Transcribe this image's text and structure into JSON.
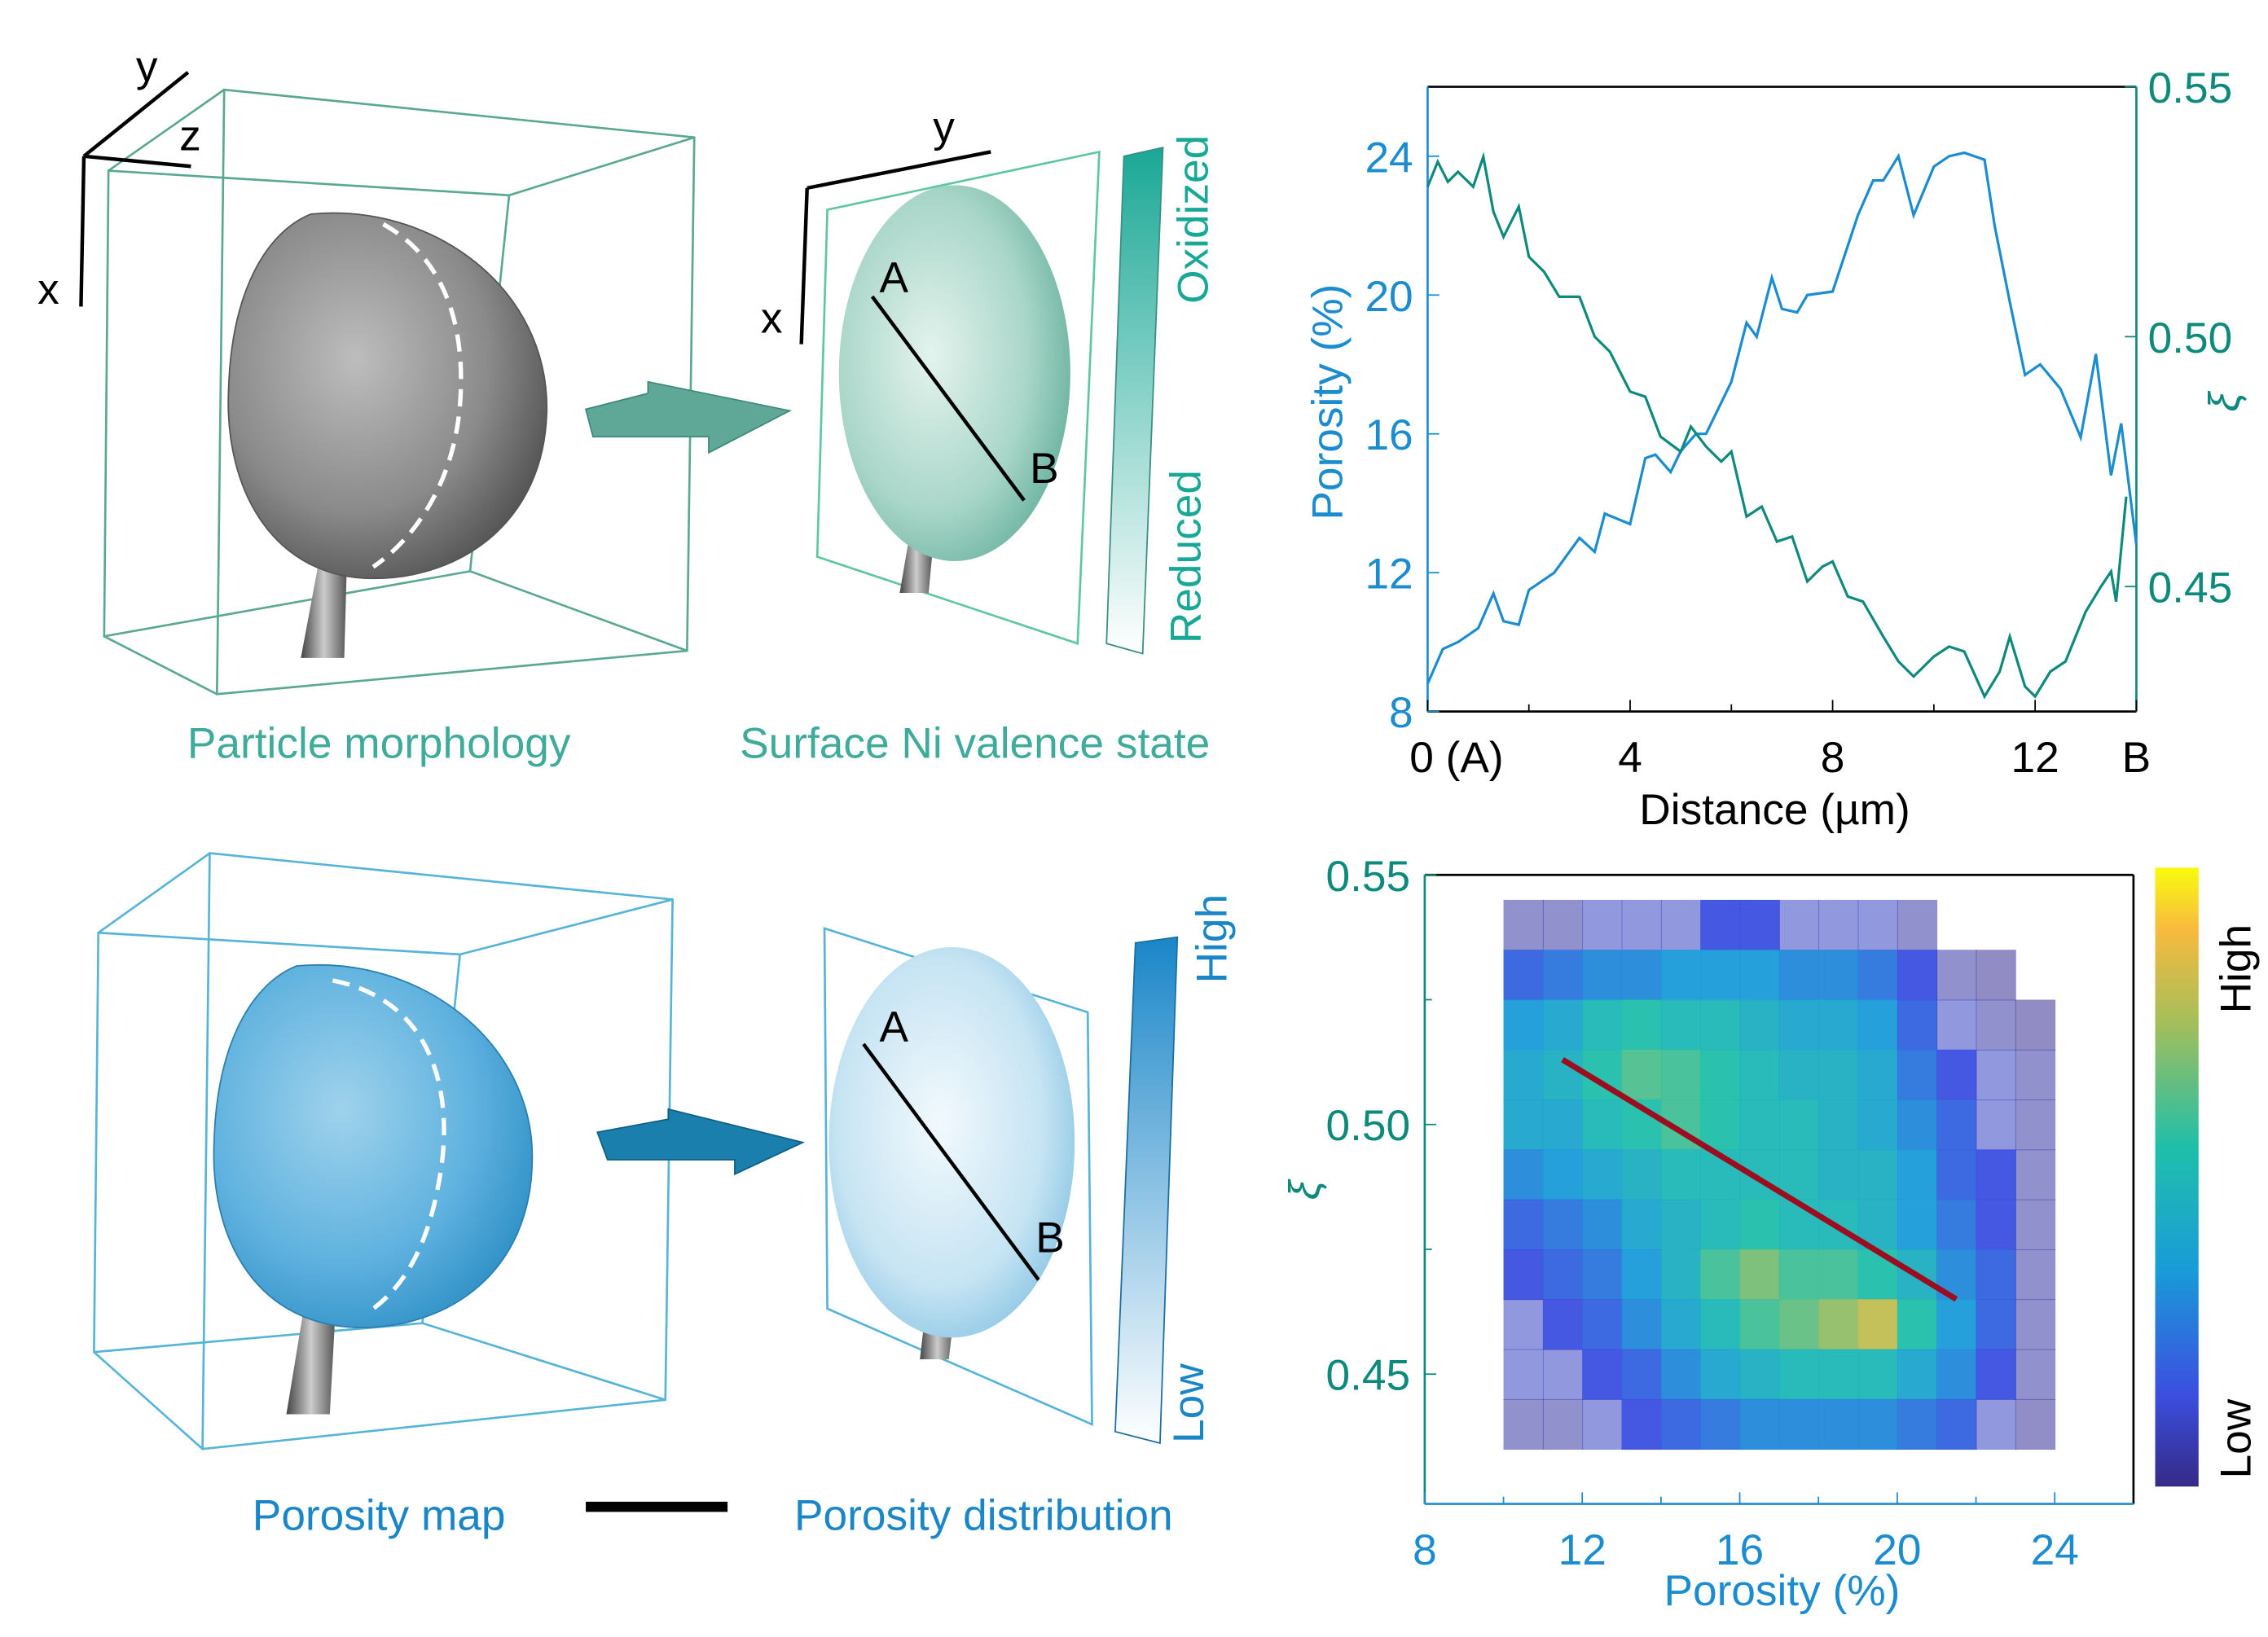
{
  "colors": {
    "porosity": "#1b8ccf",
    "xi": "#0e8a7c",
    "teal_label": "#3fab9b",
    "blue_label": "#1a86c8",
    "fit_line": "#9b0d1f",
    "morph_box": "#5aa894",
    "porosity_box": "#56b4d8"
  },
  "panels": {
    "top_left": {
      "caption": "Particle morphology",
      "axis_x": "x",
      "axis_y": "y",
      "axis_z": "z"
    },
    "top_mid": {
      "caption": "Surface Ni valence state",
      "axis_x": "x",
      "axis_y": "y",
      "point_a": "A",
      "point_b": "B",
      "colorbar_top": "Oxidized",
      "colorbar_bottom": "Reduced"
    },
    "bottom_left": {
      "caption": "Porosity map"
    },
    "bottom_mid": {
      "caption": "Porosity distribution",
      "point_a": "A",
      "point_b": "B",
      "colorbar_top": "High",
      "colorbar_bottom": "Low"
    }
  },
  "chart_data": [
    {
      "type": "line",
      "xlabel": "Distance (µm)",
      "ylabel": "Porosity (%)",
      "y2label": "ξ",
      "xlim": [
        0,
        14
      ],
      "ylim": [
        8,
        26
      ],
      "y2lim": [
        0.425,
        0.55
      ],
      "xticks": [
        {
          "v": 0,
          "label": "0 (A)"
        },
        {
          "v": 4,
          "label": "4"
        },
        {
          "v": 8,
          "label": "8"
        },
        {
          "v": 12,
          "label": "12"
        },
        {
          "v": 14,
          "label": "B"
        }
      ],
      "yticks": [
        "8",
        "12",
        "16",
        "20",
        "24"
      ],
      "y2ticks": [
        "0.45",
        "0.50",
        "0.55"
      ],
      "series": [
        {
          "axis": "left",
          "color": "#1b8ccf",
          "x": [
            0,
            0.3,
            0.6,
            1,
            1.3,
            1.5,
            1.8,
            2,
            2.5,
            3,
            3.3,
            3.5,
            4,
            4.3,
            4.5,
            4.8,
            5,
            5.3,
            5.5,
            6,
            6.3,
            6.5,
            6.8,
            7,
            7.3,
            7.5,
            8,
            8.5,
            8.8,
            9,
            9.3,
            9.6,
            10,
            10.3,
            10.6,
            11,
            11.2,
            11.5,
            11.8,
            12.1,
            12.5,
            12.9,
            13.2,
            13.5,
            13.7,
            14
          ],
          "y": [
            8.8,
            9.8,
            10.0,
            10.4,
            11.4,
            10.6,
            10.5,
            11.5,
            12.0,
            13.0,
            12.6,
            13.7,
            13.4,
            15.3,
            15.4,
            14.9,
            15.5,
            16.0,
            16.0,
            17.5,
            19.2,
            18.8,
            20.5,
            19.6,
            19.5,
            20.0,
            20.1,
            22.3,
            23.3,
            23.3,
            24.0,
            22.3,
            23.7,
            24.0,
            24.1,
            23.9,
            22.0,
            19.8,
            17.7,
            18.0,
            17.3,
            15.9,
            18.3,
            14.8,
            16.3,
            12.8
          ]
        },
        {
          "axis": "right",
          "color": "#0e8a7c",
          "x": [
            0,
            0.2,
            0.4,
            0.6,
            0.9,
            1.1,
            1.3,
            1.5,
            1.8,
            2,
            2.3,
            2.6,
            3,
            3.3,
            3.6,
            4,
            4.3,
            4.6,
            5,
            5.2,
            5.5,
            5.8,
            6,
            6.3,
            6.6,
            6.9,
            7.2,
            7.5,
            7.8,
            8,
            8.3,
            8.6,
            9,
            9.3,
            9.6,
            10,
            10.3,
            10.6,
            11,
            11.3,
            11.5,
            11.8,
            12,
            12.3,
            12.6,
            13,
            13.3,
            13.5,
            13.6,
            13.8
          ],
          "y": [
            0.53,
            0.535,
            0.531,
            0.533,
            0.53,
            0.536,
            0.525,
            0.52,
            0.526,
            0.516,
            0.513,
            0.508,
            0.508,
            0.5,
            0.497,
            0.489,
            0.488,
            0.48,
            0.477,
            0.482,
            0.478,
            0.475,
            0.477,
            0.464,
            0.466,
            0.459,
            0.46,
            0.451,
            0.454,
            0.455,
            0.448,
            0.447,
            0.44,
            0.435,
            0.432,
            0.436,
            0.438,
            0.437,
            0.428,
            0.433,
            0.44,
            0.43,
            0.428,
            0.433,
            0.435,
            0.445,
            0.45,
            0.453,
            0.447,
            0.468
          ]
        }
      ]
    },
    {
      "type": "heatmap",
      "xlabel": "Porosity (%)",
      "ylabel": "ξ",
      "xlim": [
        8,
        26
      ],
      "ylim": [
        0.424,
        0.55
      ],
      "xticks": [
        "8",
        "12",
        "16",
        "20",
        "24"
      ],
      "yticks": [
        "0.45",
        "0.50",
        "0.55"
      ],
      "colorbar": {
        "high": "High",
        "low": "Low"
      },
      "x_bins_start": 10,
      "x_bin_width": 1,
      "y_bins_top": 0.545,
      "y_bin_height": 0.01,
      "density": [
        [
          0.05,
          0.05,
          0.1,
          0.1,
          0.1,
          0.15,
          0.15,
          0.1,
          0.1,
          0.1,
          0.05,
          0,
          0,
          0
        ],
        [
          0.2,
          0.25,
          0.3,
          0.3,
          0.35,
          0.35,
          0.35,
          0.3,
          0.3,
          0.25,
          0.15,
          0.05,
          0.02,
          0
        ],
        [
          0.35,
          0.4,
          0.5,
          0.55,
          0.5,
          0.5,
          0.45,
          0.4,
          0.4,
          0.35,
          0.2,
          0.1,
          0.05,
          0.02
        ],
        [
          0.4,
          0.45,
          0.55,
          0.62,
          0.6,
          0.55,
          0.5,
          0.45,
          0.45,
          0.4,
          0.25,
          0.15,
          0.1,
          0.05
        ],
        [
          0.4,
          0.4,
          0.5,
          0.55,
          0.6,
          0.55,
          0.5,
          0.5,
          0.45,
          0.4,
          0.3,
          0.2,
          0.1,
          0.05
        ],
        [
          0.3,
          0.35,
          0.4,
          0.45,
          0.5,
          0.5,
          0.5,
          0.5,
          0.45,
          0.45,
          0.35,
          0.2,
          0.15,
          0.05
        ],
        [
          0.2,
          0.25,
          0.3,
          0.4,
          0.45,
          0.5,
          0.55,
          0.5,
          0.5,
          0.45,
          0.35,
          0.25,
          0.15,
          0.05
        ],
        [
          0.15,
          0.2,
          0.25,
          0.35,
          0.45,
          0.6,
          0.68,
          0.6,
          0.6,
          0.55,
          0.45,
          0.3,
          0.2,
          0.05
        ],
        [
          0.1,
          0.15,
          0.2,
          0.3,
          0.4,
          0.5,
          0.6,
          0.65,
          0.72,
          0.8,
          0.55,
          0.35,
          0.2,
          0.05
        ],
        [
          0.1,
          0.1,
          0.15,
          0.2,
          0.3,
          0.4,
          0.45,
          0.5,
          0.5,
          0.5,
          0.4,
          0.3,
          0.15,
          0.05
        ],
        [
          0.05,
          0.05,
          0.1,
          0.15,
          0.2,
          0.25,
          0.3,
          0.3,
          0.3,
          0.3,
          0.25,
          0.2,
          0.1,
          0.03
        ]
      ],
      "fit_line": {
        "x": [
          11.5,
          21.5
        ],
        "y": [
          0.513,
          0.465
        ],
        "color": "#9b0d1f"
      }
    }
  ]
}
